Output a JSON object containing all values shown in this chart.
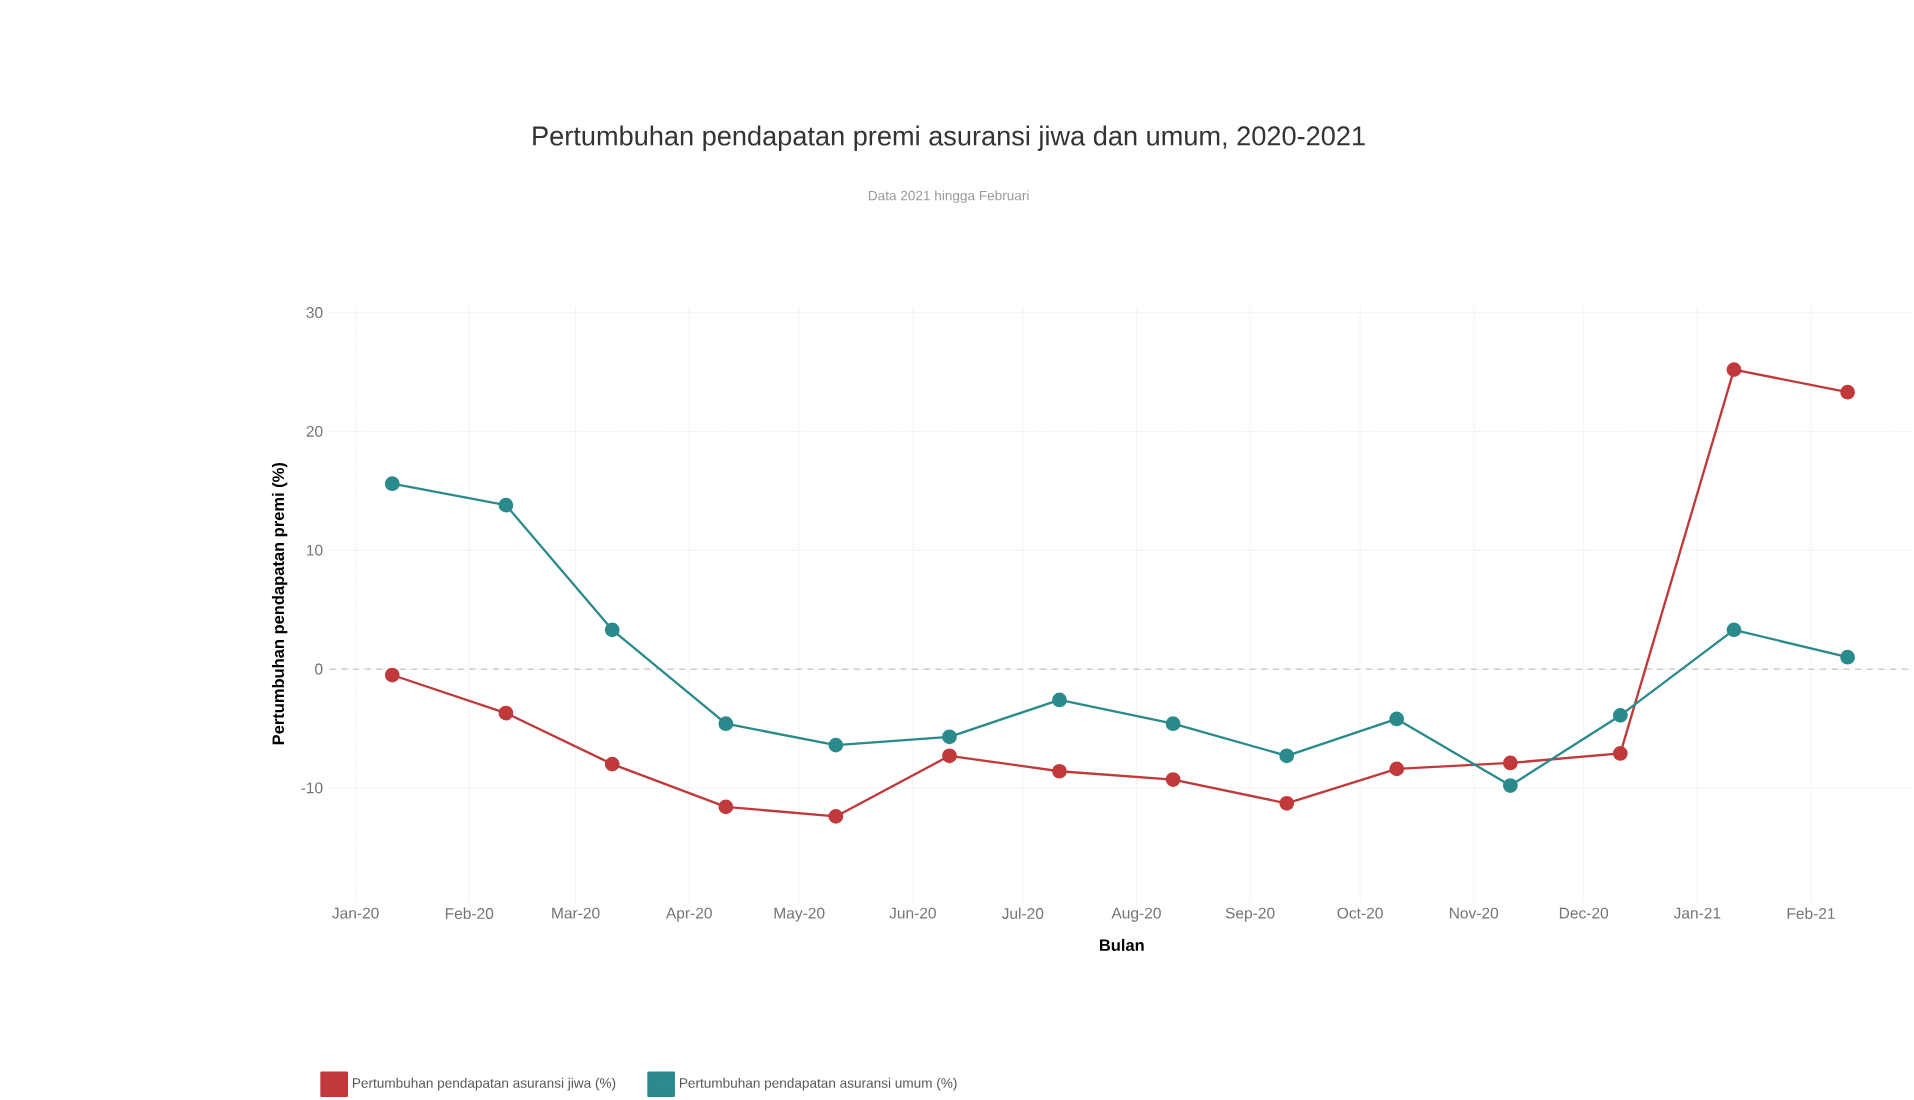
{
  "chart_data": {
    "type": "line",
    "title": "Pertumbuhan pendapatan premi asuransi jiwa dan umum, 2020-2021",
    "subtitle": "Data 2021 hingga Februari",
    "xlabel": "Bulan",
    "ylabel": "Pertumbuhan pendapatan premi (%)",
    "x": [
      "2020-01-11",
      "2020-02-11",
      "2020-03-11",
      "2020-04-11",
      "2020-05-11",
      "2020-06-11",
      "2020-07-11",
      "2020-08-11",
      "2020-09-11",
      "2020-10-11",
      "2020-11-11",
      "2020-12-11",
      "2021-01-11",
      "2021-02-11"
    ],
    "series": [
      {
        "name": "Pertumbuhan pendapatan asuransi jiwa (%)",
        "color": "#c0393b",
        "values": [
          -0.5,
          -3.7,
          -8.0,
          -11.6,
          -12.4,
          -7.3,
          -8.6,
          -9.3,
          -11.3,
          -8.4,
          -7.9,
          -7.1,
          25.2,
          23.3
        ]
      },
      {
        "name": "Pertumbuhan pendapatan asuransi umum (%)",
        "color": "#2a8a8c",
        "values": [
          15.6,
          13.8,
          3.3,
          -4.6,
          -6.4,
          -5.7,
          -2.6,
          -4.6,
          -7.3,
          -4.2,
          -9.8,
          -3.9,
          3.3,
          1.0
        ]
      }
    ],
    "xlim": [
      "2019-12-25",
      "2021-03-01"
    ],
    "xticks": [
      {
        "value": "2020-01-01",
        "label": "Jan-20"
      },
      {
        "value": "2020-02-01",
        "label": "Feb-20"
      },
      {
        "value": "2020-03-01",
        "label": "Mar-20"
      },
      {
        "value": "2020-04-01",
        "label": "Apr-20"
      },
      {
        "value": "2020-05-01",
        "label": "May-20"
      },
      {
        "value": "2020-06-01",
        "label": "Jun-20"
      },
      {
        "value": "2020-07-01",
        "label": "Jul-20"
      },
      {
        "value": "2020-08-01",
        "label": "Aug-20"
      },
      {
        "value": "2020-09-01",
        "label": "Sep-20"
      },
      {
        "value": "2020-10-01",
        "label": "Oct-20"
      },
      {
        "value": "2020-11-01",
        "label": "Nov-20"
      },
      {
        "value": "2020-12-01",
        "label": "Dec-20"
      },
      {
        "value": "2021-01-01",
        "label": "Jan-21"
      },
      {
        "value": "2021-02-01",
        "label": "Feb-21"
      }
    ],
    "ylim": [
      -19.5,
      30.5
    ],
    "yticks": [
      -10,
      0,
      10,
      20,
      30
    ],
    "ref_lines": [
      {
        "axis": "y",
        "value": 0,
        "line_style": "dashed",
        "color": "#999999"
      }
    ],
    "grid": true,
    "legend": "bottom left",
    "marker": "circle",
    "line_style": "solid"
  }
}
